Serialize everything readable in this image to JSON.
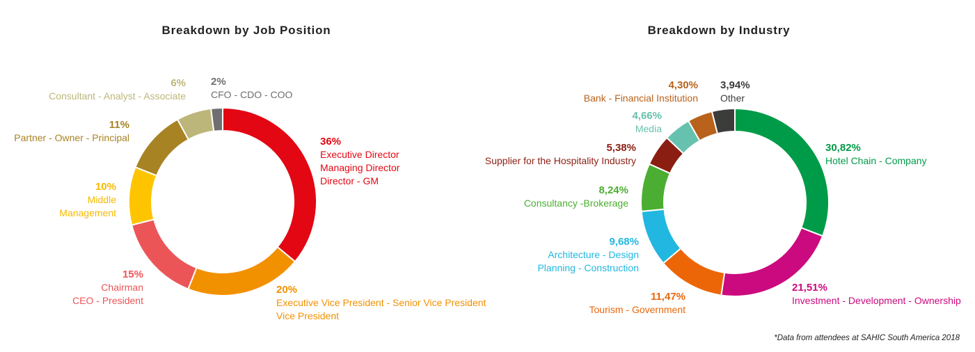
{
  "chart_data": [
    {
      "type": "pie",
      "title": "Breakdown by Job Position",
      "unit": "%",
      "slices": [
        {
          "pct": "36%",
          "value": 36,
          "label_lines": [
            "Executive Director",
            "Managing Director",
            "Director - GM"
          ],
          "color": "#E30613"
        },
        {
          "pct": "20%",
          "value": 20,
          "label_lines": [
            "Executive Vice President - Senior Vice President",
            "Vice President"
          ],
          "color": "#F29100"
        },
        {
          "pct": "15%",
          "value": 15,
          "label_lines": [
            "Chairman",
            "CEO - President"
          ],
          "color": "#EC5558"
        },
        {
          "pct": "10%",
          "value": 10,
          "label_lines": [
            "Middle",
            "Management"
          ],
          "color": "#FFC400"
        },
        {
          "pct": "11%",
          "value": 11,
          "label_lines": [
            "Partner - Owner - Principal"
          ],
          "color": "#A88324"
        },
        {
          "pct": "6%",
          "value": 6,
          "label_lines": [
            "Consultant - Analyst - Associate"
          ],
          "color": "#BDB67A"
        },
        {
          "pct": "2%",
          "value": 2,
          "label_lines": [
            "CFO - CDO - COO"
          ],
          "color": "#6F6F6F"
        }
      ]
    },
    {
      "type": "pie",
      "title": "Breakdown by Industry",
      "unit": "%",
      "slices": [
        {
          "pct": "30,82%",
          "value": 30.82,
          "label_lines": [
            "Hotel Chain - Company"
          ],
          "color": "#009B48"
        },
        {
          "pct": "21,51%",
          "value": 21.51,
          "label_lines": [
            "Investment - Development - Ownership"
          ],
          "color": "#CC0A7F"
        },
        {
          "pct": "11,47%",
          "value": 11.47,
          "label_lines": [
            "Tourism - Government"
          ],
          "color": "#EC6608"
        },
        {
          "pct": "9,68%",
          "value": 9.68,
          "label_lines": [
            "Architecture - Design",
            "Planning - Construction"
          ],
          "color": "#21B7E0"
        },
        {
          "pct": "8,24%",
          "value": 8.24,
          "label_lines": [
            "Consultancy -Brokerage"
          ],
          "color": "#4BAE32"
        },
        {
          "pct": "5,38%",
          "value": 5.38,
          "label_lines": [
            "Supplier for the Hospitality Industry"
          ],
          "color": "#8B1E12"
        },
        {
          "pct": "4,66%",
          "value": 4.66,
          "label_lines": [
            "Media"
          ],
          "color": "#66C2AE"
        },
        {
          "pct": "4,30%",
          "value": 4.3,
          "label_lines": [
            "Bank - Financial Institution"
          ],
          "color": "#B8621B"
        },
        {
          "pct": "3,94%",
          "value": 3.94,
          "label_lines": [
            "Other"
          ],
          "color": "#3C3C3B"
        }
      ]
    }
  ],
  "footnote": "*Data from attendees at SAHIC South America 2018"
}
